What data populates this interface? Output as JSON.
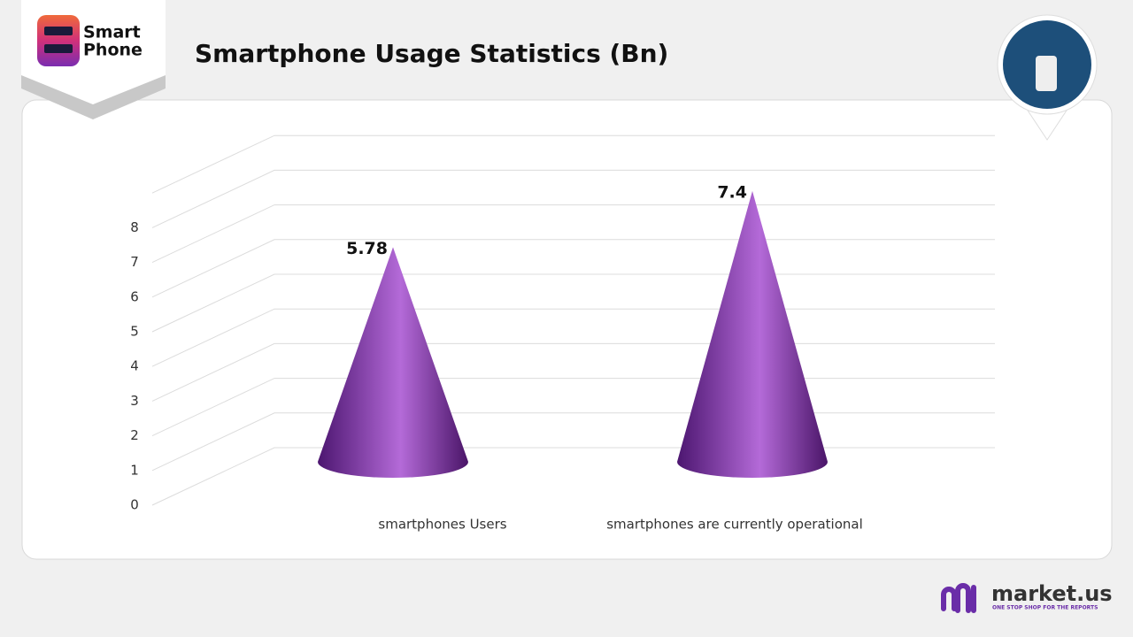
{
  "brand": {
    "line1": "Smart",
    "line2": "Phone"
  },
  "chart_data": {
    "type": "cone",
    "title": "Smartphone Usage Statistics (Bn)",
    "categories": [
      "smartphones Users",
      "smartphones are currently operational"
    ],
    "values": [
      5.78,
      7.4
    ],
    "color": "#8a3db8",
    "ylim": [
      0,
      9
    ],
    "yticks": [
      0,
      1,
      2,
      3,
      4,
      5,
      6,
      7,
      8
    ],
    "grid": true
  },
  "footer": {
    "logo": "market.us",
    "tagline": "ONE STOP SHOP FOR THE REPORTS"
  }
}
